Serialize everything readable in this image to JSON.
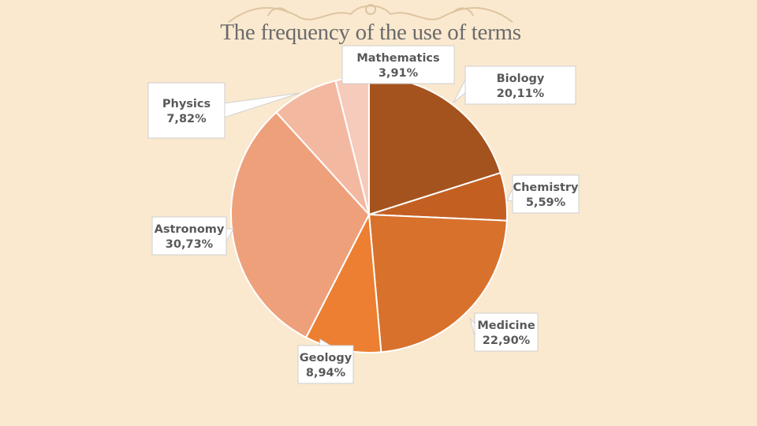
{
  "title": "The frequency of the use of terms",
  "chart_data": {
    "type": "pie",
    "title": "The frequency of the use of terms",
    "slices": [
      {
        "label": "Biology",
        "value_label": "20,11%",
        "value": 20.11,
        "color": "#a5531e"
      },
      {
        "label": "Chemistry",
        "value_label": "5,59%",
        "value": 5.59,
        "color": "#c45f22"
      },
      {
        "label": "Medicine",
        "value_label": "22,90%",
        "value": 22.9,
        "color": "#d8712c"
      },
      {
        "label": "Geology",
        "value_label": "8,94%",
        "value": 8.94,
        "color": "#ec7f31"
      },
      {
        "label": "Astronomy",
        "value_label": "30,73%",
        "value": 30.73,
        "color": "#eea07b"
      },
      {
        "label": "Physics",
        "value_label": "7,82%",
        "value": 7.82,
        "color": "#f3b8a0"
      },
      {
        "label": "Mathematics",
        "value_label": "3,91%",
        "value": 3.91,
        "color": "#f6cbbb"
      }
    ]
  }
}
